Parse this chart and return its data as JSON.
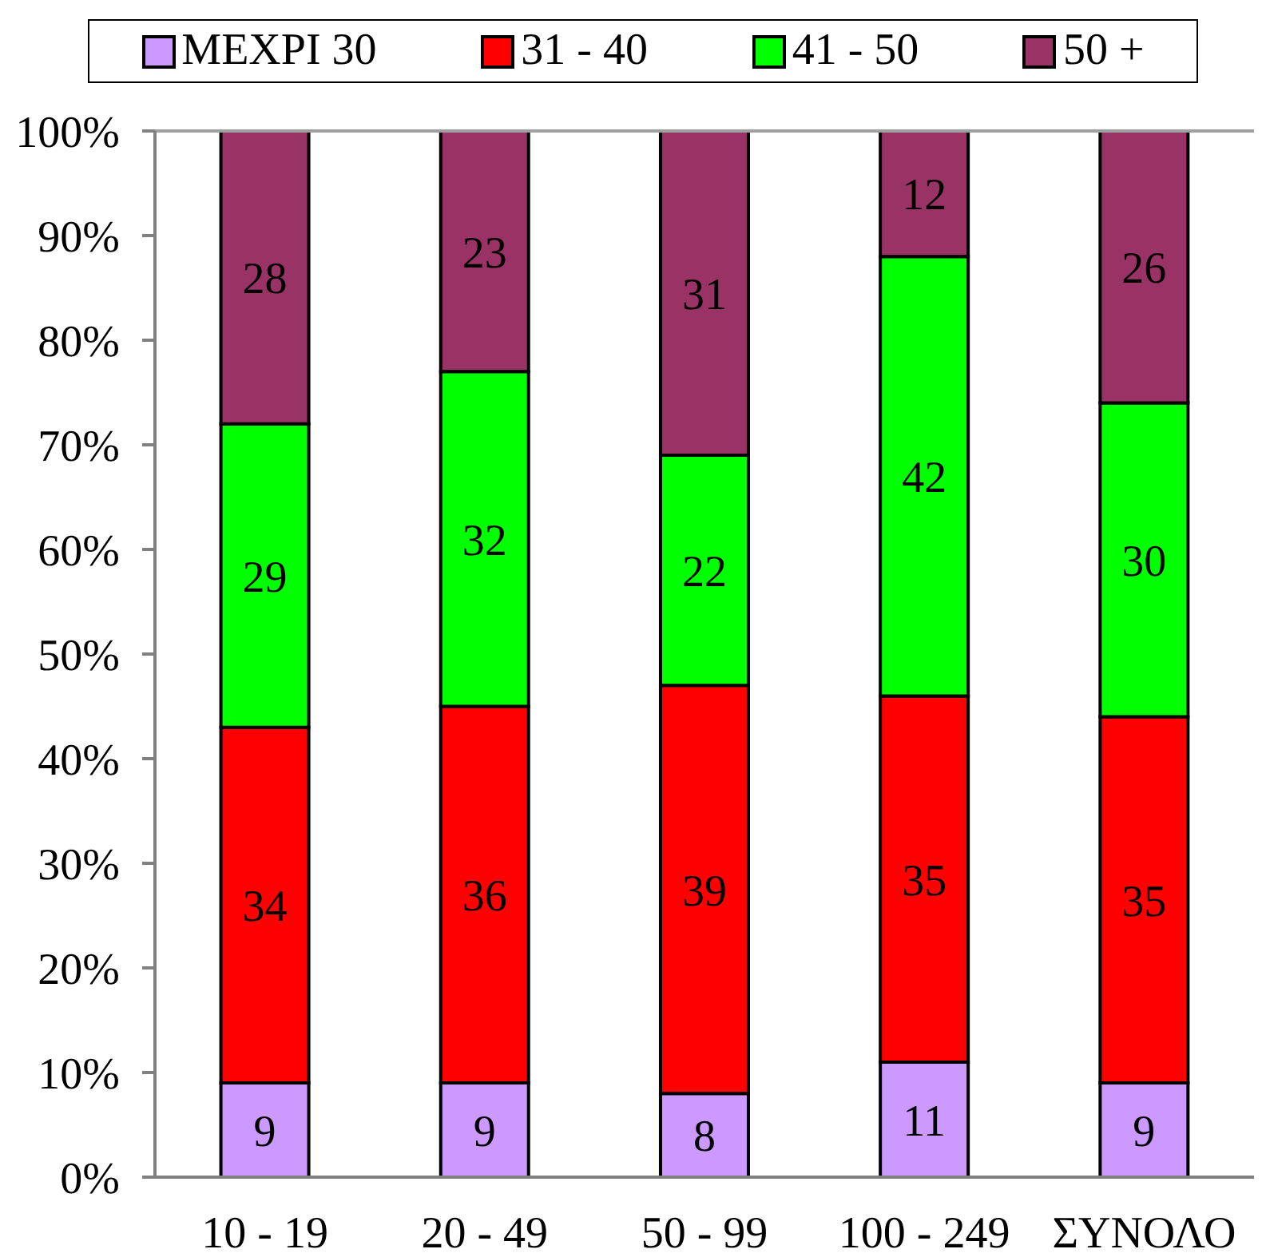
{
  "chart_data": {
    "type": "bar",
    "stacked": true,
    "categories": [
      "10 - 19",
      "20 - 49",
      "50 - 99",
      "100 - 249",
      "ΣΥΝΟΛΟ"
    ],
    "series": [
      {
        "name": "ΜΕΧΡΙ 30",
        "color": "#cc99ff",
        "values": [
          9,
          9,
          8,
          11,
          9
        ]
      },
      {
        "name": "31 - 40",
        "color": "#ff0000",
        "values": [
          34,
          36,
          39,
          35,
          35
        ]
      },
      {
        "name": "41 - 50",
        "color": "#00ff00",
        "values": [
          29,
          32,
          22,
          42,
          30
        ]
      },
      {
        "name": "50 +",
        "color": "#993366",
        "values": [
          28,
          23,
          31,
          12,
          26
        ]
      }
    ],
    "ylim": [
      0,
      100
    ],
    "yticks": [
      {
        "value": 0,
        "label": "0%"
      },
      {
        "value": 10,
        "label": "10%"
      },
      {
        "value": 20,
        "label": "20%"
      },
      {
        "value": 30,
        "label": "30%"
      },
      {
        "value": 40,
        "label": "40%"
      },
      {
        "value": 50,
        "label": "50%"
      },
      {
        "value": 60,
        "label": "60%"
      },
      {
        "value": 70,
        "label": "70%"
      },
      {
        "value": 80,
        "label": "80%"
      },
      {
        "value": 90,
        "label": "90%"
      },
      {
        "value": 100,
        "label": "100%"
      }
    ],
    "data_labels": true,
    "legend": "top"
  }
}
